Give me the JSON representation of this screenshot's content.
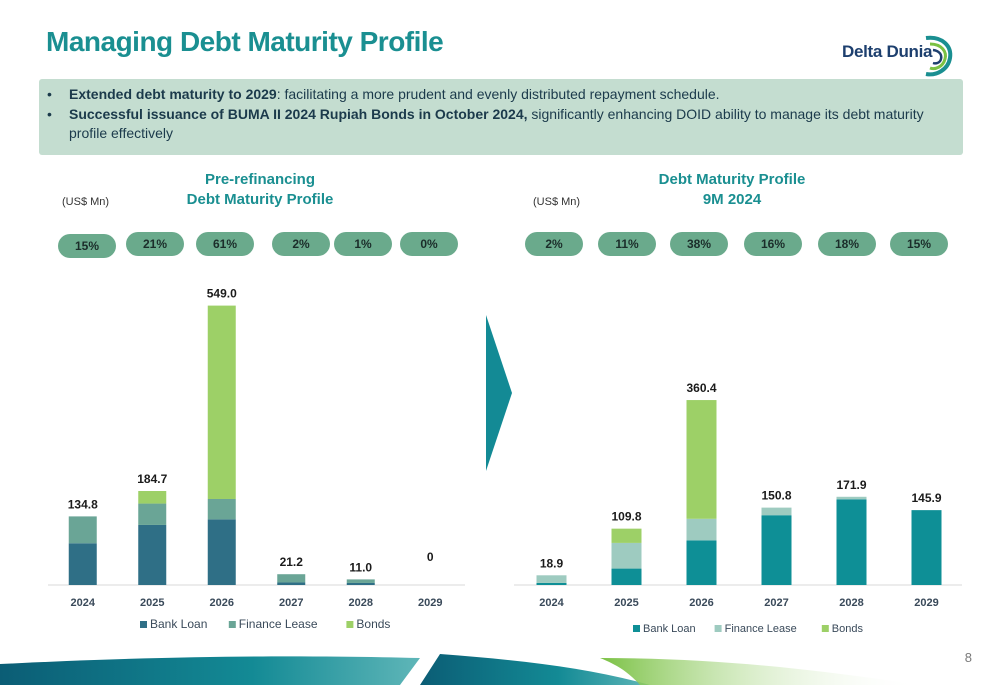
{
  "page": {
    "title": "Managing Debt Maturity Profile",
    "page_number": "8",
    "logo_text": "Delta Dunia"
  },
  "bullets": [
    {
      "bold": "Extended debt maturity to 2029",
      "rest": ": facilitating a more prudent and evenly distributed repayment schedule."
    },
    {
      "bold": "Successful issuance of BUMA II 2024 Rupiah Bonds in October 2024,",
      "rest": " significantly enhancing DOID ability to manage its debt maturity profile effectively"
    }
  ],
  "colors": {
    "title": "#1a8f91",
    "callout_bg": "#c4ddd0",
    "pill": "#6aaa8c",
    "arrow": "#138a95"
  },
  "chart_data": [
    {
      "type": "bar",
      "stacked": true,
      "title_line1": "Pre-refinancing",
      "title_line2": "Debt Maturity Profile",
      "units": "(US$ Mn)",
      "categories": [
        "2024",
        "2025",
        "2026",
        "2027",
        "2028",
        "2029"
      ],
      "percentages": [
        "15%",
        "21%",
        "61%",
        "2%",
        "1%",
        "0%"
      ],
      "totals": [
        "134.8",
        "184.7",
        "549.0",
        "21.2",
        "11.0",
        "0"
      ],
      "series": [
        {
          "name": "Bank Loan",
          "color": "#2f6f86",
          "values": [
            82,
            118,
            129,
            5,
            4,
            0
          ]
        },
        {
          "name": "Finance Lease",
          "color": "#6aa596",
          "values": [
            52.8,
            42,
            40,
            16.2,
            7,
            0
          ]
        },
        {
          "name": "Bonds",
          "color": "#9dd067",
          "values": [
            0,
            24.7,
            380,
            0,
            0,
            0
          ]
        }
      ],
      "ylim": [
        0,
        560
      ],
      "legend": "bottom"
    },
    {
      "type": "bar",
      "stacked": true,
      "title_line1": "Debt Maturity Profile",
      "title_line2": "9M 2024",
      "units": "(US$ Mn)",
      "categories": [
        "2024",
        "2025",
        "2026",
        "2027",
        "2028",
        "2029"
      ],
      "percentages": [
        "2%",
        "11%",
        "38%",
        "16%",
        "18%",
        "15%"
      ],
      "totals": [
        "18.9",
        "109.8",
        "360.4",
        "150.8",
        "171.9",
        "145.9"
      ],
      "series": [
        {
          "name": "Bank Loan",
          "color": "#0e8f96",
          "values": [
            4,
            32,
            87,
            136,
            167,
            145.9
          ]
        },
        {
          "name": "Finance Lease",
          "color": "#9ecbc0",
          "values": [
            14.9,
            50,
            42,
            14.8,
            4.9,
            0
          ]
        },
        {
          "name": "Bonds",
          "color": "#9dd067",
          "values": [
            0,
            27.8,
            231.4,
            0,
            0,
            0
          ]
        }
      ],
      "ylim": [
        0,
        380
      ],
      "legend": "bottom"
    }
  ]
}
